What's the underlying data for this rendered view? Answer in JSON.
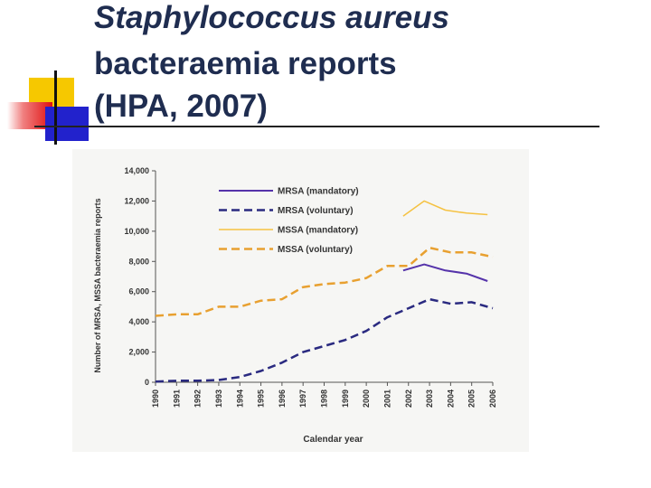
{
  "title": {
    "line1": "Staphylococcus aureus",
    "line2": "bacteraemia reports",
    "line3": "(HPA, 2007)"
  },
  "colors": {
    "title": "#1f2d50",
    "accent_yellow": "#f6c800",
    "accent_red": "#e01010",
    "accent_blue": "#2222cc"
  },
  "chart_data": {
    "type": "line",
    "xlabel": "Calendar year",
    "ylabel": "Number of MRSA, MSSA bacteraemia reports",
    "ylim": [
      0,
      14000
    ],
    "yticks": [
      0,
      2000,
      4000,
      6000,
      8000,
      10000,
      12000,
      14000
    ],
    "ytick_labels": [
      "0",
      "2,000",
      "4,000",
      "6,000",
      "8,000",
      "10,000",
      "12,000",
      "14,000"
    ],
    "x": [
      "1990",
      "1991",
      "1992",
      "1993",
      "1994",
      "1995",
      "1996",
      "1997",
      "1998",
      "1999",
      "2000",
      "2001",
      "2002",
      "2003",
      "2004",
      "2005",
      "2006"
    ],
    "grid": false,
    "legend_position": "top-left",
    "series": [
      {
        "name": "MRSA (mandatory)",
        "color": "#5533aa",
        "dash": "solid",
        "width": 2,
        "x": [
          2001.75,
          2002.75,
          2003.75,
          2004.75,
          2005.75
        ],
        "values": [
          7400,
          7800,
          7400,
          7200,
          6700
        ]
      },
      {
        "name": "MRSA (voluntary)",
        "color": "#2a2a80",
        "dash": "dashed",
        "width": 2.5,
        "x": [
          1990,
          1991,
          1992,
          1993,
          1994,
          1995,
          1996,
          1997,
          1998,
          1999,
          2000,
          2001,
          2002,
          2003,
          2004,
          2005,
          2006
        ],
        "values": [
          50,
          100,
          100,
          150,
          350,
          750,
          1300,
          2000,
          2400,
          2800,
          3400,
          4300,
          4900,
          5500,
          5200,
          5300,
          4900
        ]
      },
      {
        "name": "MSSA (mandatory)",
        "color": "#f5c242",
        "dash": "solid",
        "width": 1.5,
        "x": [
          2001.75,
          2002.75,
          2003.75,
          2004.75,
          2005.75
        ],
        "values": [
          11000,
          12000,
          11400,
          11200,
          11100
        ]
      },
      {
        "name": "MSSA (voluntary)",
        "color": "#e8a030",
        "dash": "dashed",
        "width": 2.5,
        "x": [
          1990,
          1991,
          1992,
          1993,
          1994,
          1995,
          1996,
          1997,
          1998,
          1999,
          2000,
          2001,
          2002,
          2003,
          2004,
          2005,
          2006
        ],
        "values": [
          4400,
          4500,
          4500,
          5000,
          5000,
          5400,
          5500,
          6300,
          6500,
          6600,
          6900,
          7700,
          7700,
          8900,
          8600,
          8600,
          8300
        ]
      }
    ]
  }
}
